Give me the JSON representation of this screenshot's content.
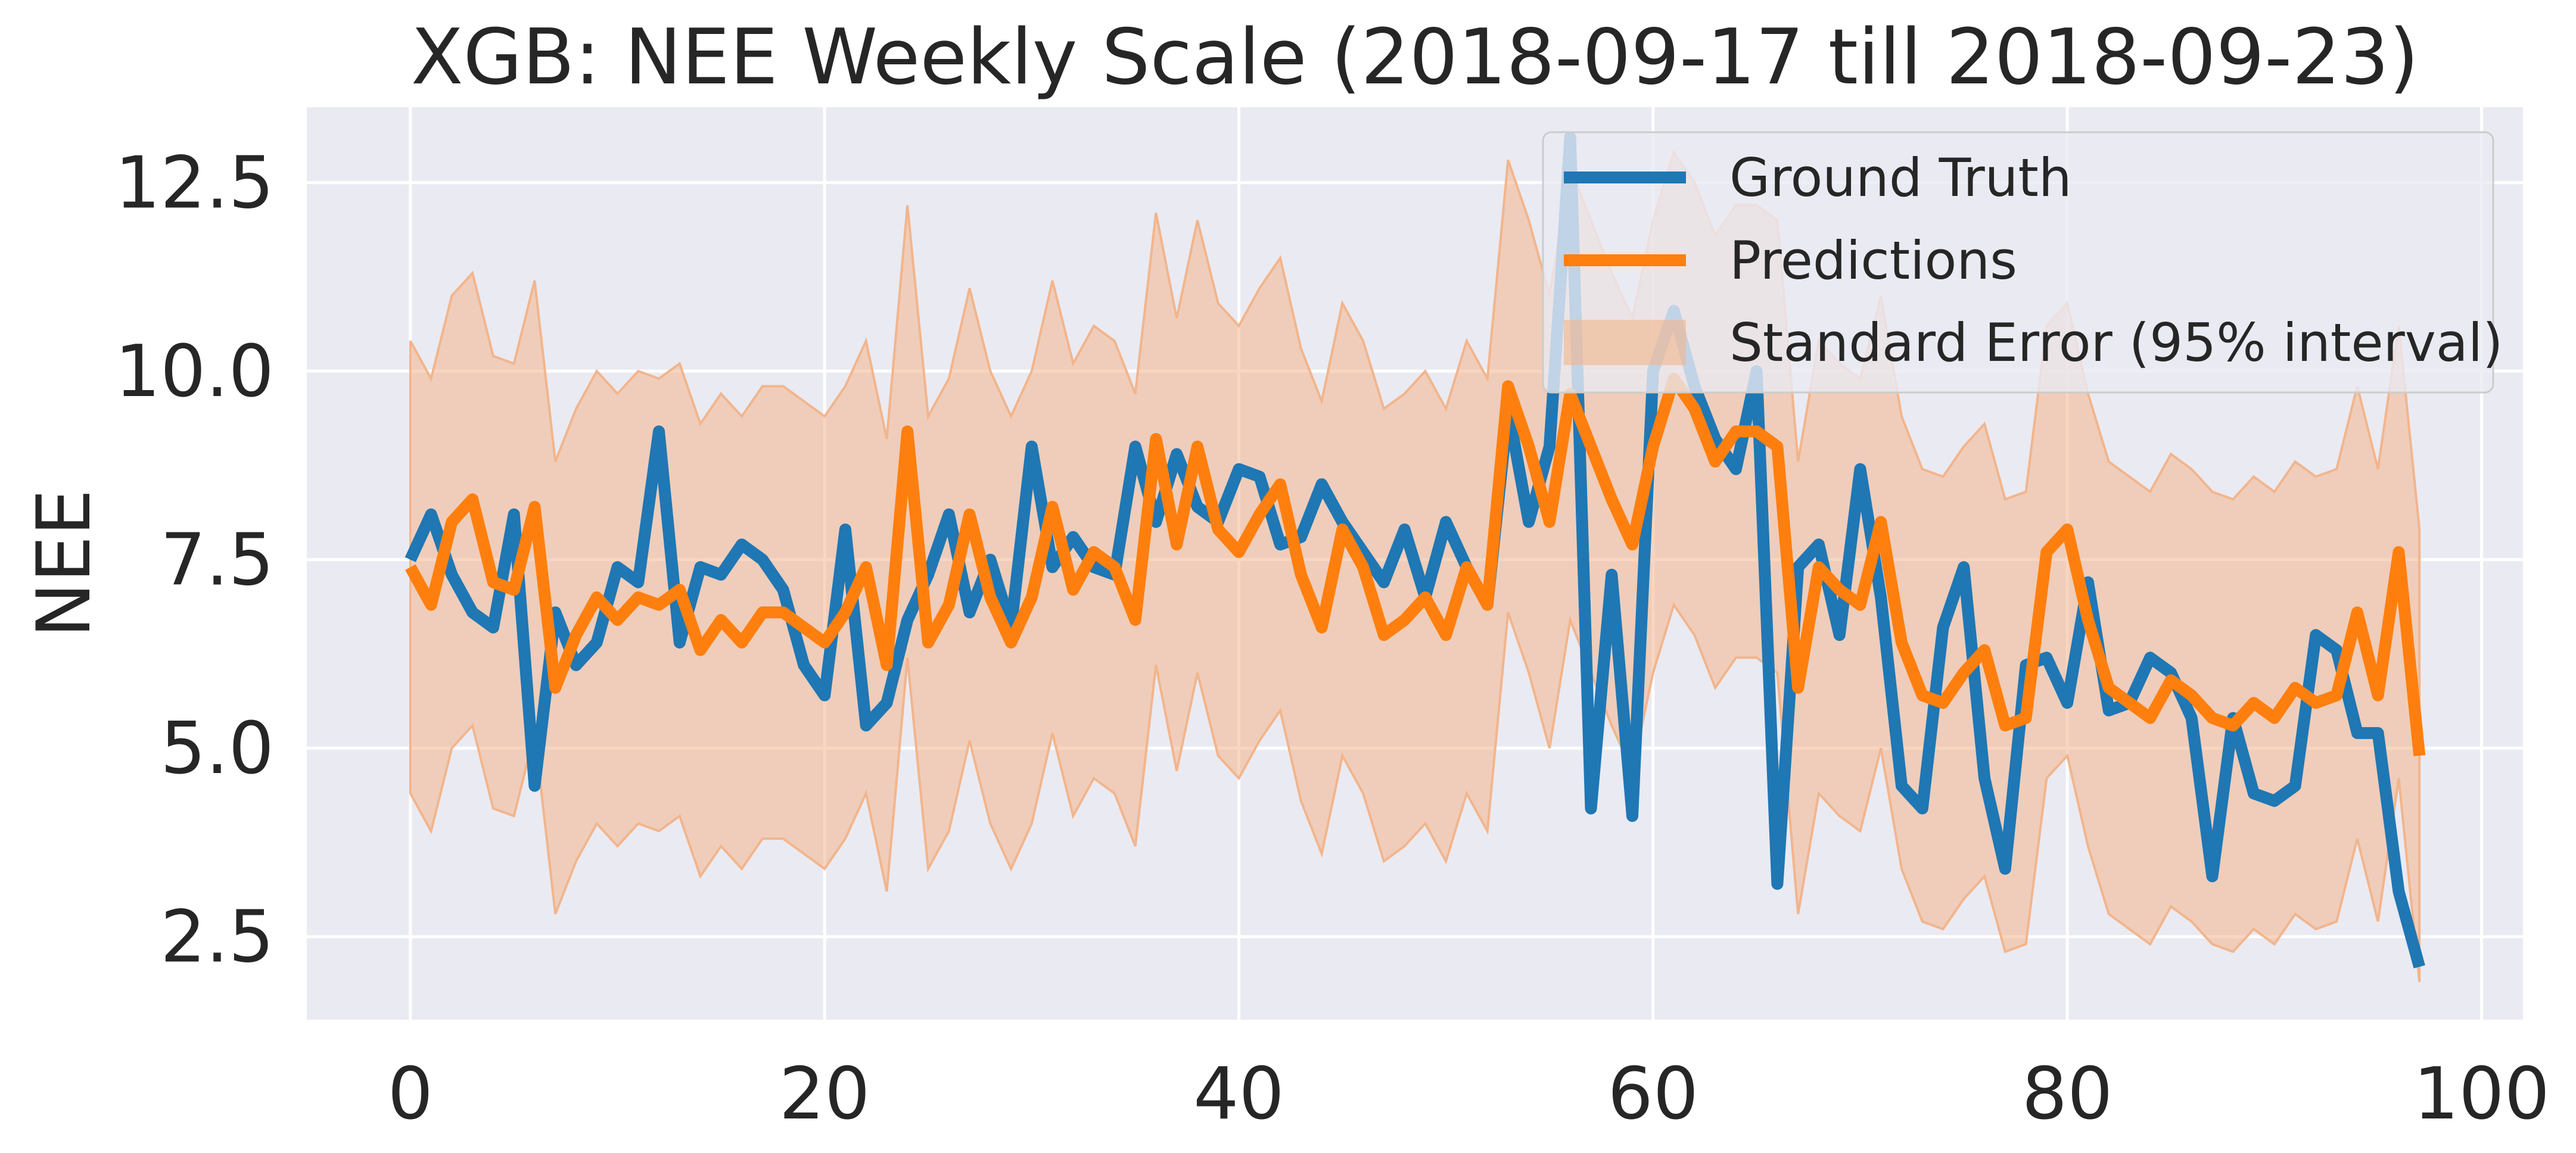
{
  "chart_data": {
    "type": "line",
    "title": "XGB: NEE Weekly Scale (2018-09-17 till 2018-09-23)",
    "xlabel": "",
    "ylabel": "NEE",
    "xlim": [
      -5,
      102
    ],
    "ylim": [
      1.4,
      13.5
    ],
    "x_ticks": [
      0,
      20,
      40,
      60,
      80,
      100
    ],
    "y_ticks": [
      2.5,
      5.0,
      7.5,
      10.0,
      12.5
    ],
    "x_tick_labels": [
      "0",
      "20",
      "40",
      "60",
      "80",
      "100"
    ],
    "y_tick_labels": [
      "2.5",
      "5.0",
      "7.5",
      "10.0",
      "12.5"
    ],
    "grid": true,
    "legend_position": "top-right",
    "legend": [
      "Ground Truth",
      "Predictions",
      "Standard Error (95% interval)"
    ],
    "colors": {
      "ground_truth": "#1f77b4",
      "predictions": "#ff7f0e",
      "band": "#f2b58c",
      "plot_bg": "#eaeaf2",
      "grid": "#ffffff"
    },
    "series": [
      {
        "name": "Ground Truth",
        "values": [
          7.5,
          8.1,
          7.3,
          6.8,
          6.6,
          8.1,
          4.5,
          6.8,
          6.1,
          6.4,
          7.4,
          7.2,
          9.2,
          6.4,
          7.4,
          7.3,
          7.7,
          7.5,
          7.1,
          6.1,
          5.7,
          7.9,
          5.3,
          5.6,
          6.7,
          7.3,
          8.1,
          6.8,
          7.5,
          6.6,
          9.0,
          7.4,
          7.8,
          7.4,
          7.3,
          9.0,
          8.0,
          8.9,
          8.2,
          8.0,
          8.7,
          8.6,
          7.7,
          7.8,
          8.5,
          8.0,
          7.6,
          7.2,
          7.9,
          7.0,
          8.0,
          7.4,
          6.9,
          9.5,
          8.0,
          9.0,
          13.1,
          4.2,
          7.3,
          4.1,
          10.0,
          10.8,
          9.8,
          9.1,
          8.7,
          10.0,
          3.2,
          7.4,
          7.7,
          6.5,
          8.7,
          7.0,
          4.5,
          4.2,
          6.6,
          7.4,
          4.6,
          3.4,
          6.1,
          6.2,
          5.6,
          7.2,
          5.5,
          5.6,
          6.2,
          6.0,
          5.4,
          3.3,
          5.4,
          4.4,
          4.3,
          4.5,
          6.5,
          6.3,
          5.2,
          5.2,
          3.1,
          2.1
        ]
      },
      {
        "name": "Predictions",
        "values": [
          7.4,
          6.9,
          8.0,
          8.3,
          7.2,
          7.1,
          8.2,
          5.8,
          6.5,
          7.0,
          6.7,
          7.0,
          6.9,
          7.1,
          6.3,
          6.7,
          6.4,
          6.8,
          6.8,
          6.6,
          6.4,
          6.8,
          7.4,
          6.1,
          9.2,
          6.4,
          6.9,
          8.1,
          7.0,
          6.4,
          7.0,
          8.2,
          7.1,
          7.6,
          7.4,
          6.7,
          9.1,
          7.7,
          9.0,
          7.9,
          7.6,
          8.1,
          8.5,
          7.3,
          6.6,
          7.9,
          7.4,
          6.5,
          6.7,
          7.0,
          6.5,
          7.4,
          6.9,
          9.8,
          9.0,
          8.0,
          9.7,
          9.0,
          8.3,
          7.7,
          9.0,
          9.9,
          9.5,
          8.8,
          9.2,
          9.2,
          9.0,
          5.8,
          7.4,
          7.1,
          6.9,
          8.0,
          6.4,
          5.7,
          5.6,
          6.0,
          6.3,
          5.3,
          5.4,
          7.6,
          7.9,
          6.7,
          5.8,
          5.6,
          5.4,
          5.9,
          5.7,
          5.4,
          5.3,
          5.6,
          5.4,
          5.8,
          5.6,
          5.7,
          6.8,
          5.7,
          7.6,
          4.9
        ]
      }
    ],
    "band": {
      "name": "Standard Error (95% interval)",
      "upper": [
        10.4,
        9.9,
        11.0,
        11.3,
        10.2,
        10.1,
        11.2,
        8.8,
        9.5,
        10.0,
        9.7,
        10.0,
        9.9,
        10.1,
        9.3,
        9.7,
        9.4,
        9.8,
        9.8,
        9.6,
        9.4,
        9.8,
        10.4,
        9.1,
        12.2,
        9.4,
        9.9,
        11.1,
        10.0,
        9.4,
        10.0,
        11.2,
        10.1,
        10.6,
        10.4,
        9.7,
        12.1,
        10.7,
        12.0,
        10.9,
        10.6,
        11.1,
        11.5,
        10.3,
        9.6,
        10.9,
        10.4,
        9.5,
        9.7,
        10.0,
        9.5,
        10.4,
        9.9,
        12.8,
        12.0,
        11.0,
        12.7,
        12.0,
        11.3,
        10.7,
        12.0,
        12.9,
        12.5,
        11.8,
        12.2,
        12.2,
        12.0,
        8.8,
        10.4,
        10.1,
        9.9,
        11.0,
        9.4,
        8.7,
        8.6,
        9.0,
        9.3,
        8.3,
        8.4,
        10.6,
        10.9,
        9.7,
        8.8,
        8.6,
        8.4,
        8.9,
        8.7,
        8.4,
        8.3,
        8.6,
        8.4,
        8.8,
        8.6,
        8.7,
        9.8,
        8.7,
        10.6,
        7.9
      ],
      "lower": [
        4.4,
        3.9,
        5.0,
        5.3,
        4.2,
        4.1,
        5.2,
        2.8,
        3.5,
        4.0,
        3.7,
        4.0,
        3.9,
        4.1,
        3.3,
        3.7,
        3.4,
        3.8,
        3.8,
        3.6,
        3.4,
        3.8,
        4.4,
        3.1,
        6.2,
        3.4,
        3.9,
        5.1,
        4.0,
        3.4,
        4.0,
        5.2,
        4.1,
        4.6,
        4.4,
        3.7,
        6.1,
        4.7,
        6.0,
        4.9,
        4.6,
        5.1,
        5.5,
        4.3,
        3.6,
        4.9,
        4.4,
        3.5,
        3.7,
        4.0,
        3.5,
        4.4,
        3.9,
        6.8,
        6.0,
        5.0,
        6.7,
        6.0,
        5.3,
        4.7,
        6.0,
        6.9,
        6.5,
        5.8,
        6.2,
        6.2,
        6.0,
        2.8,
        4.4,
        4.1,
        3.9,
        5.0,
        3.4,
        2.7,
        2.6,
        3.0,
        3.3,
        2.3,
        2.4,
        4.6,
        4.9,
        3.7,
        2.8,
        2.6,
        2.4,
        2.9,
        2.7,
        2.4,
        2.3,
        2.6,
        2.4,
        2.8,
        2.6,
        2.7,
        3.8,
        2.7,
        4.6,
        1.9
      ]
    }
  }
}
